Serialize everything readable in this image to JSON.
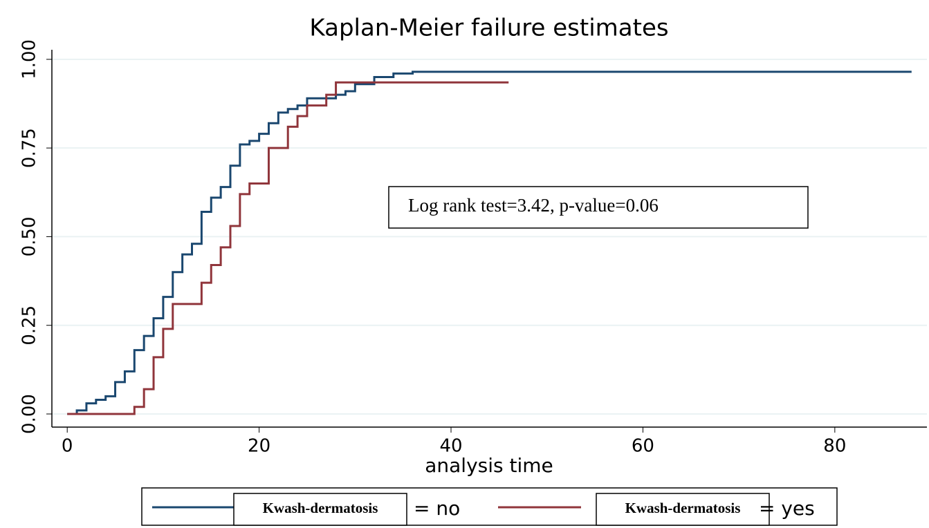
{
  "chart_data": {
    "type": "step",
    "title": "Kaplan-Meier failure estimates",
    "x_label": "analysis time",
    "annotation": "Log rank test=3.42, p-value=0.06",
    "legend": {
      "variable": "Kwash-dermatosis",
      "position": "bottom"
    },
    "xlim": [
      -1.6,
      89.6
    ],
    "ylim": [
      -0.037,
      1.027
    ],
    "xticks": [
      0,
      20,
      40,
      60,
      80
    ],
    "yticks": [
      {
        "value": 0,
        "label": "0.00"
      },
      {
        "value": 0.25,
        "label": "0.25"
      },
      {
        "value": 0.5,
        "label": "0.50"
      },
      {
        "value": 0.75,
        "label": "0.75"
      },
      {
        "value": 1,
        "label": "1.00"
      }
    ],
    "grid": true,
    "series": [
      {
        "name": "= no",
        "color": "#1a476f",
        "x": [
          0,
          1,
          2,
          3,
          4,
          5,
          6,
          7,
          8,
          9,
          10,
          11,
          12,
          13,
          14,
          15,
          16,
          17,
          18,
          19,
          20,
          21,
          22,
          23,
          24,
          25,
          28,
          29,
          30,
          32,
          34,
          36,
          88
        ],
        "values": [
          0,
          0.01,
          0.03,
          0.04,
          0.05,
          0.09,
          0.12,
          0.18,
          0.22,
          0.27,
          0.33,
          0.4,
          0.45,
          0.48,
          0.57,
          0.61,
          0.64,
          0.7,
          0.76,
          0.77,
          0.79,
          0.82,
          0.85,
          0.86,
          0.87,
          0.89,
          0.9,
          0.91,
          0.93,
          0.95,
          0.96,
          0.965,
          0.965
        ]
      },
      {
        "name": "= yes",
        "color": "#90353b",
        "x": [
          0,
          7,
          8,
          9,
          10,
          11,
          14,
          15,
          16,
          17,
          18,
          19,
          21,
          23,
          24,
          25,
          27,
          28,
          46
        ],
        "values": [
          0,
          0.02,
          0.07,
          0.16,
          0.24,
          0.31,
          0.37,
          0.42,
          0.47,
          0.53,
          0.62,
          0.65,
          0.75,
          0.81,
          0.84,
          0.87,
          0.9,
          0.935,
          0.935
        ]
      }
    ]
  }
}
